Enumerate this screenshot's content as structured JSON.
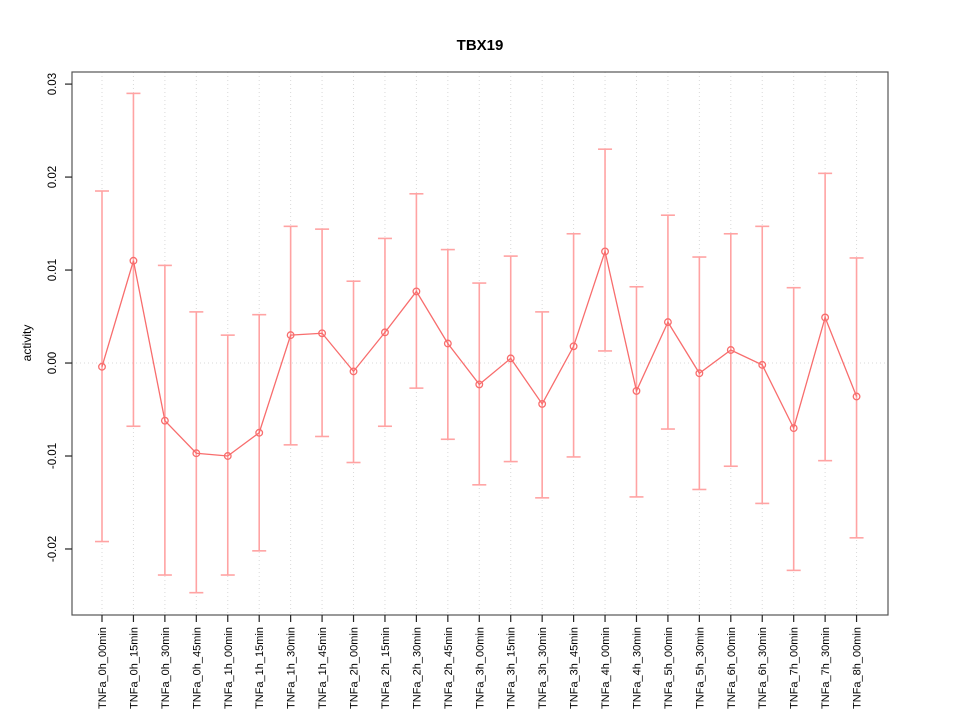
{
  "title": "TBX19",
  "ylabel": "activity",
  "colors": {
    "series_line": "#f86d6d",
    "marker_stroke": "#f86d6d",
    "error_bar": "#ffa3a3",
    "grid": "#d9d9d9",
    "zero_line": "#d9d9d9",
    "axis_box": "#555555",
    "tick": "#222222",
    "label_text": "#000000",
    "background": "#ffffff"
  },
  "chart_data": {
    "type": "line",
    "title": "TBX19",
    "xlabel": "",
    "ylabel": "activity",
    "legend": "none",
    "grid": "vertical dotted gridline at each category; dotted horizontal line at y=0",
    "marker": "open-circle",
    "error_bars": true,
    "ylim": [
      -0.0271,
      0.0313
    ],
    "yticks": [
      {
        "value": -0.02,
        "label": "-0.02"
      },
      {
        "value": -0.01,
        "label": "-0.01"
      },
      {
        "value": 0.0,
        "label": "0.00"
      },
      {
        "value": 0.01,
        "label": "0.01"
      },
      {
        "value": 0.02,
        "label": "0.02"
      },
      {
        "value": 0.03,
        "label": "0.03"
      }
    ],
    "categories": [
      "TNFa_0h_00min",
      "TNFa_0h_15min",
      "TNFa_0h_30min",
      "TNFa_0h_45min",
      "TNFa_1h_00min",
      "TNFa_1h_15min",
      "TNFa_1h_30min",
      "TNFa_1h_45min",
      "TNFa_2h_00min",
      "TNFa_2h_15min",
      "TNFa_2h_30min",
      "TNFa_2h_45min",
      "TNFa_3h_00min",
      "TNFa_3h_15min",
      "TNFa_3h_30min",
      "TNFa_3h_45min",
      "TNFa_4h_00min",
      "TNFa_4h_30min",
      "TNFa_5h_00min",
      "TNFa_5h_30min",
      "TNFa_6h_00min",
      "TNFa_6h_30min",
      "TNFa_7h_00min",
      "TNFa_7h_30min",
      "TNFa_8h_00min"
    ],
    "series": [
      {
        "name": "activity",
        "values": [
          -0.0004,
          0.011,
          -0.0062,
          -0.0097,
          -0.01,
          -0.0075,
          0.003,
          0.0032,
          -0.0009,
          0.0033,
          0.0077,
          0.0021,
          -0.0023,
          0.0005,
          -0.0044,
          0.0018,
          0.012,
          -0.003,
          0.0044,
          -0.0011,
          0.0014,
          -0.0002,
          -0.007,
          0.0049,
          -0.0036
        ],
        "upper": [
          0.0185,
          0.029,
          0.0105,
          0.0055,
          0.003,
          0.0052,
          0.0147,
          0.0144,
          0.0088,
          0.0134,
          0.0182,
          0.0122,
          0.0086,
          0.0115,
          0.0055,
          0.0139,
          0.023,
          0.0082,
          0.0159,
          0.0114,
          0.0139,
          0.0147,
          0.0081,
          0.0204,
          0.0113
        ],
        "lower": [
          -0.0192,
          -0.0068,
          -0.0228,
          -0.0247,
          -0.0228,
          -0.0202,
          -0.0088,
          -0.0079,
          -0.0107,
          -0.0068,
          -0.0027,
          -0.0082,
          -0.0131,
          -0.0106,
          -0.0145,
          -0.0101,
          0.0013,
          -0.0144,
          -0.0071,
          -0.0136,
          -0.0111,
          -0.0151,
          -0.0223,
          -0.0105,
          -0.0188
        ]
      }
    ]
  }
}
